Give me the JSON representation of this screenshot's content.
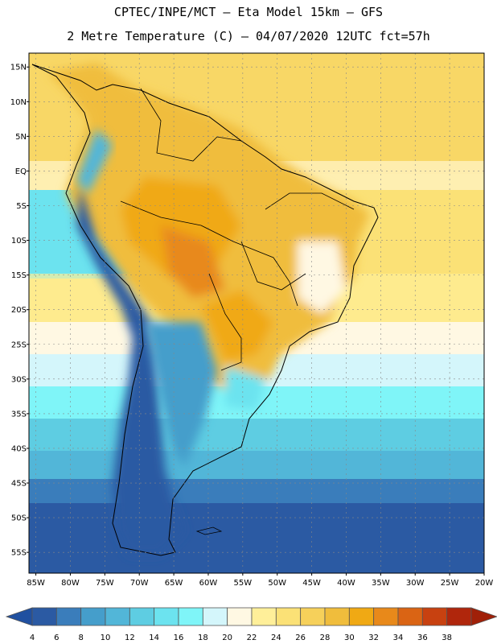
{
  "header": {
    "line1": "CPTEC/INPE/MCT –  Eta Model 15km – GFS",
    "line2": "2 Metre Temperature (C) – 04/07/2020 12UTC fct=57h"
  },
  "map": {
    "lat_labels": [
      "15N",
      "10N",
      "5N",
      "EQ",
      "5S",
      "10S",
      "15S",
      "20S",
      "25S",
      "30S",
      "35S",
      "40S",
      "45S",
      "50S",
      "55S"
    ],
    "lat_values": [
      15,
      10,
      5,
      0,
      -5,
      -10,
      -15,
      -20,
      -25,
      -30,
      -35,
      -40,
      -45,
      -50,
      -55
    ],
    "lon_labels": [
      "85W",
      "80W",
      "75W",
      "70W",
      "65W",
      "60W",
      "55W",
      "50W",
      "45W",
      "40W",
      "35W",
      "30W",
      "25W",
      "20W"
    ],
    "lon_values": [
      -85,
      -80,
      -75,
      -70,
      -65,
      -60,
      -55,
      -50,
      -45,
      -40,
      -35,
      -30,
      -25,
      -20
    ],
    "lat_range": [
      -58,
      17
    ],
    "lon_range": [
      -86,
      -20
    ]
  },
  "colorbar": {
    "labels": [
      "4",
      "6",
      "8",
      "10",
      "12",
      "14",
      "16",
      "18",
      "20",
      "22",
      "24",
      "26",
      "28",
      "30",
      "32",
      "34",
      "36",
      "38"
    ],
    "colors": [
      "#2b5aa3",
      "#3a7dbb",
      "#459ecb",
      "#52b6d8",
      "#5ecde2",
      "#6ce3ef",
      "#7ff5f8",
      "#d4f6fb",
      "#fff8e3",
      "#ffef99",
      "#fbe176",
      "#f6d05a",
      "#f0bd3c",
      "#f0a914",
      "#e8891a",
      "#da6414",
      "#c84110",
      "#b0260c"
    ],
    "under_color": "#2050a0",
    "over_color": "#a02008"
  }
}
